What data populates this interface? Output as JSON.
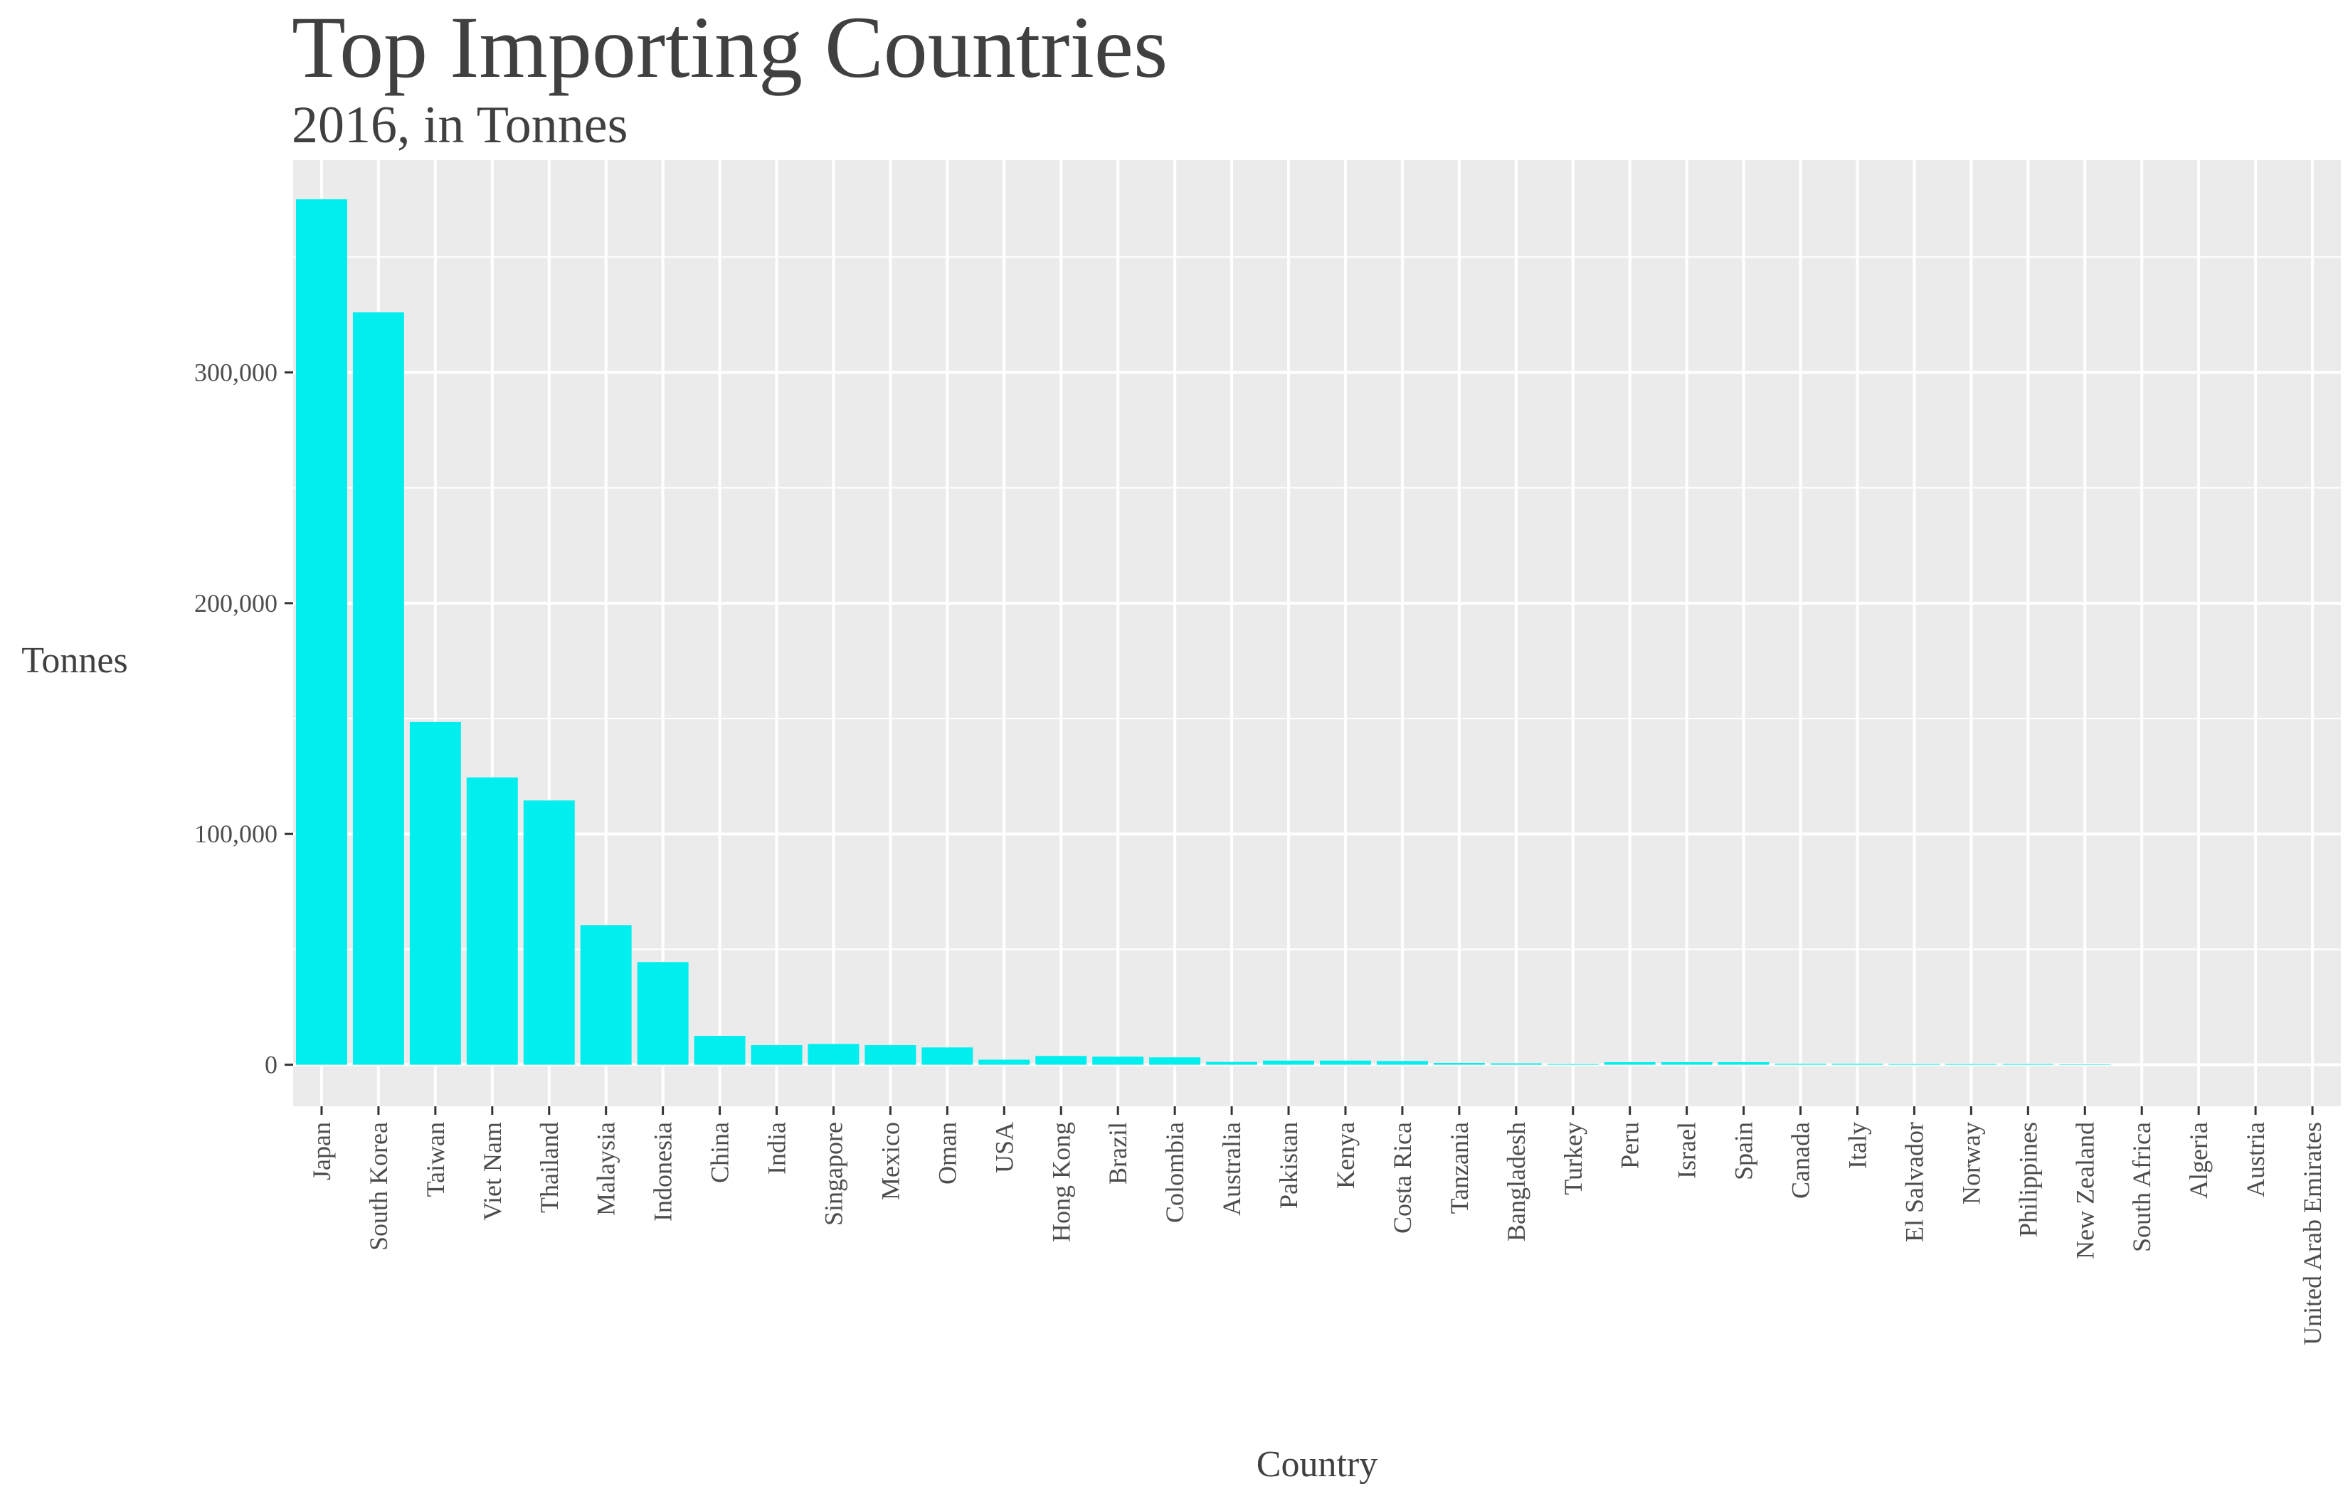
{
  "colors": {
    "bar": "#00EEEE",
    "panel": "#EBEBEB",
    "grid": "#FFFFFF",
    "text": "#404040",
    "tick": "#4D4D4D"
  },
  "chart_data": {
    "type": "bar",
    "title": "Top Importing Countries",
    "subtitle": "2016, in Tonnes",
    "xlabel": "Country",
    "ylabel": "Tonnes",
    "ylim": [
      -18000,
      392000
    ],
    "yticks": [
      0,
      100000,
      200000,
      300000
    ],
    "ytick_labels": [
      "0",
      "100,000",
      "200,000",
      "300,000"
    ],
    "grid": true,
    "categories": [
      "Japan",
      "South Korea",
      "Taiwan",
      "Viet Nam",
      "Thailand",
      "Malaysia",
      "Indonesia",
      "China",
      "India",
      "Singapore",
      "Mexico",
      "Oman",
      "USA",
      "Hong Kong",
      "Brazil",
      "Colombia",
      "Australia",
      "Pakistan",
      "Kenya",
      "Costa Rica",
      "Tanzania",
      "Bangladesh",
      "Turkey",
      "Peru",
      "Israel",
      "Spain",
      "Canada",
      "Italy",
      "El Salvador",
      "Norway",
      "Philippines",
      "New Zealand",
      "South Africa",
      "Algeria",
      "Austria",
      "United Arab Emirates"
    ],
    "values": [
      375000,
      326000,
      148500,
      124500,
      114500,
      60500,
      44500,
      12500,
      8500,
      9000,
      8500,
      7500,
      2200,
      3800,
      3500,
      3200,
      1200,
      1800,
      1800,
      1600,
      800,
      600,
      300,
      1100,
      1100,
      1100,
      400,
      400,
      300,
      300,
      300,
      200,
      0,
      0,
      0,
      0
    ]
  }
}
